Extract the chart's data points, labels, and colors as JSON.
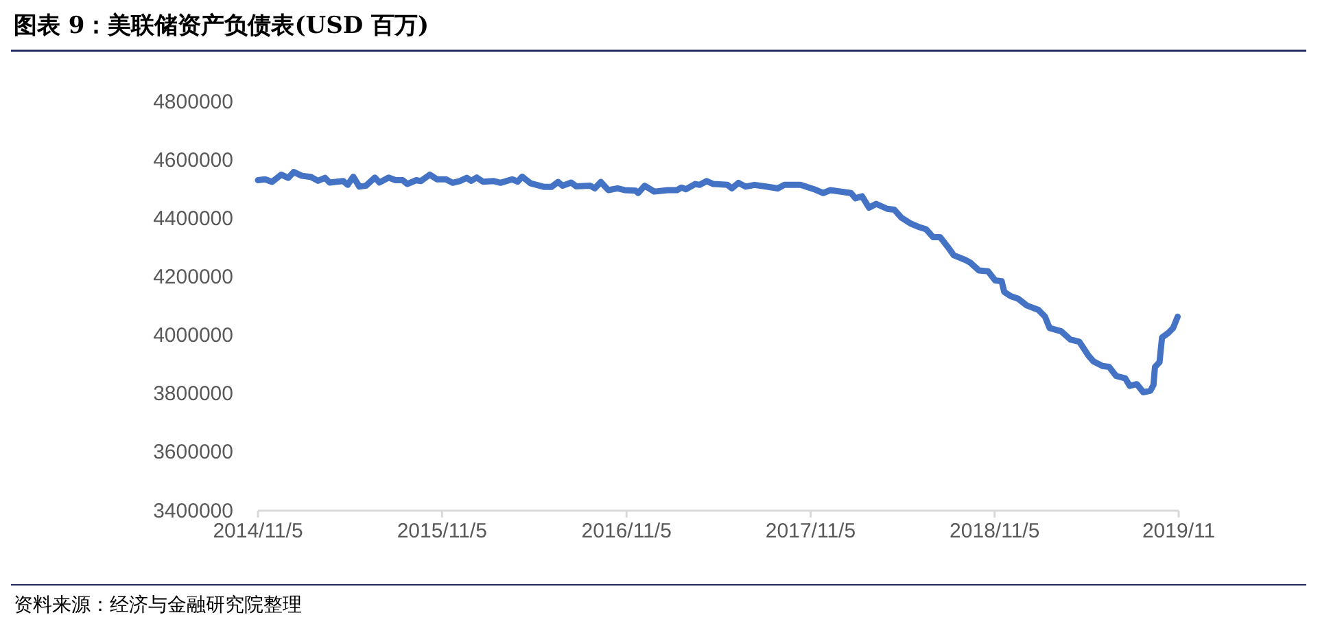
{
  "chart_data": {
    "type": "line",
    "title": "图表 9：美联储资产负债表(USD  百万)",
    "annotations": [
      "资料来源：经济与金融研究院整理"
    ],
    "xlim": [
      "2014-11-05",
      "2019-11-05"
    ],
    "xticks": [
      {
        "value": "2014-11-05",
        "label": "2014/11/5"
      },
      {
        "value": "2015-11-05",
        "label": "2015/11/5"
      },
      {
        "value": "2016-11-05",
        "label": "2016/11/5"
      },
      {
        "value": "2017-11-05",
        "label": "2017/11/5"
      },
      {
        "value": "2018-11-05",
        "label": "2018/11/5"
      },
      {
        "value": "2019-11-05",
        "label": "2019/11"
      }
    ],
    "ylim": [
      3400000,
      4800000
    ],
    "yticks": [
      3400000,
      3600000,
      3800000,
      4000000,
      4200000,
      4400000,
      4600000,
      4800000
    ],
    "grid": false,
    "marker": "none",
    "line_style": "solid",
    "x": [
      "2014-11-05",
      "2014-11-19",
      "2014-12-03",
      "2014-12-21",
      "2015-01-04",
      "2015-01-15",
      "2015-01-31",
      "2015-02-18",
      "2015-03-04",
      "2015-03-18",
      "2015-03-27",
      "2015-04-23",
      "2015-05-02",
      "2015-05-13",
      "2015-05-25",
      "2015-06-07",
      "2015-06-25",
      "2015-07-04",
      "2015-07-22",
      "2015-08-05",
      "2015-08-19",
      "2015-08-28",
      "2015-09-15",
      "2015-09-24",
      "2015-10-12",
      "2015-10-26",
      "2015-11-13",
      "2015-11-26",
      "2015-12-10",
      "2015-12-24",
      "2016-01-02",
      "2016-01-13",
      "2016-01-25",
      "2016-02-16",
      "2016-02-29",
      "2016-03-23",
      "2016-04-03",
      "2016-04-12",
      "2016-04-29",
      "2016-05-26",
      "2016-06-09",
      "2016-06-22",
      "2016-07-01",
      "2016-07-18",
      "2016-07-28",
      "2016-08-25",
      "2016-09-03",
      "2016-09-15",
      "2016-09-30",
      "2016-10-18",
      "2016-11-01",
      "2016-11-23",
      "2016-11-28",
      "2016-12-11",
      "2016-12-30",
      "2017-01-26",
      "2017-02-13",
      "2017-02-22",
      "2017-03-03",
      "2017-03-21",
      "2017-03-30",
      "2017-04-13",
      "2017-04-26",
      "2017-05-24",
      "2017-06-02",
      "2017-06-15",
      "2017-06-29",
      "2017-07-17",
      "2017-08-13",
      "2017-09-01",
      "2017-09-14",
      "2017-10-16",
      "2017-11-12",
      "2017-11-30",
      "2017-12-14",
      "2018-01-24",
      "2018-02-02",
      "2018-02-15",
      "2018-03-01",
      "2018-03-15",
      "2018-04-06",
      "2018-04-20",
      "2018-05-04",
      "2018-05-22",
      "2018-06-09",
      "2018-06-22",
      "2018-07-06",
      "2018-07-20",
      "2018-08-03",
      "2018-08-16",
      "2018-09-08",
      "2018-09-17",
      "2018-10-05",
      "2018-10-23",
      "2018-11-06",
      "2018-11-19",
      "2018-11-24",
      "2018-12-07",
      "2018-12-21",
      "2019-01-08",
      "2019-01-31",
      "2019-02-13",
      "2019-02-22",
      "2019-03-17",
      "2019-04-04",
      "2019-04-22",
      "2019-05-10",
      "2019-05-20",
      "2019-06-07",
      "2019-06-20",
      "2019-07-04",
      "2019-07-22",
      "2019-07-31",
      "2019-08-14",
      "2019-08-27",
      "2019-09-10",
      "2019-09-16",
      "2019-09-19",
      "2019-09-28",
      "2019-10-03",
      "2019-10-16",
      "2019-10-25",
      "2019-11-03"
    ],
    "series": [
      {
        "color": "#4472c4",
        "values": [
          4531000,
          4534000,
          4525000,
          4550000,
          4539000,
          4559000,
          4546000,
          4542000,
          4529000,
          4539000,
          4523000,
          4528000,
          4515000,
          4543000,
          4509000,
          4512000,
          4540000,
          4523000,
          4540000,
          4531000,
          4531000,
          4518000,
          4531000,
          4528000,
          4550000,
          4534000,
          4534000,
          4522000,
          4528000,
          4539000,
          4529000,
          4540000,
          4526000,
          4528000,
          4522000,
          4534000,
          4526000,
          4543000,
          4520000,
          4508000,
          4508000,
          4525000,
          4512000,
          4523000,
          4510000,
          4512000,
          4503000,
          4525000,
          4497000,
          4503000,
          4497000,
          4495000,
          4487000,
          4512000,
          4492000,
          4497000,
          4497000,
          4506000,
          4500000,
          4518000,
          4515000,
          4528000,
          4518000,
          4515000,
          4503000,
          4522000,
          4509000,
          4515000,
          4508000,
          4503000,
          4515000,
          4515000,
          4500000,
          4487000,
          4497000,
          4487000,
          4469000,
          4476000,
          4437000,
          4450000,
          4433000,
          4430000,
          4403000,
          4383000,
          4370000,
          4363000,
          4336000,
          4336000,
          4305000,
          4274000,
          4258000,
          4250000,
          4222000,
          4219000,
          4188000,
          4185000,
          4149000,
          4134000,
          4126000,
          4102000,
          4087000,
          4064000,
          4025000,
          4014000,
          3986000,
          3978000,
          3931000,
          3911000,
          3895000,
          3892000,
          3861000,
          3853000,
          3827000,
          3833000,
          3805000,
          3811000,
          3830000,
          3892000,
          3908000,
          3993000,
          4009000,
          4025000,
          4064000
        ]
      }
    ]
  }
}
